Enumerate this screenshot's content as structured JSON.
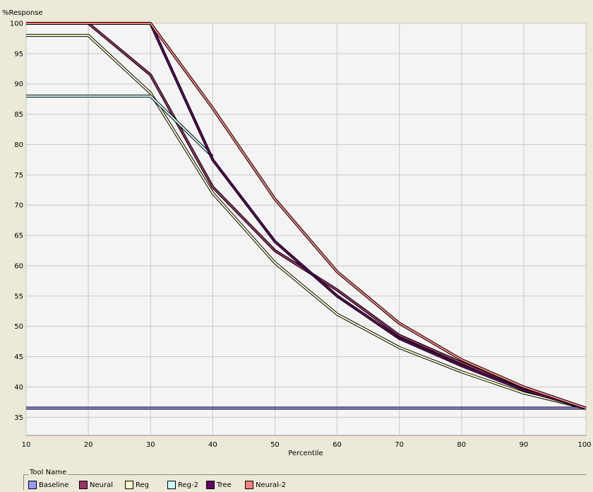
{
  "chart_data": {
    "type": "line",
    "ylabel": "%Response",
    "xlabel": "Percentile",
    "xlim": [
      10,
      100
    ],
    "ylim": [
      32,
      100
    ],
    "x_ticks": [
      10,
      20,
      30,
      40,
      50,
      60,
      70,
      80,
      90,
      100
    ],
    "y_ticks": [
      35,
      40,
      45,
      50,
      55,
      60,
      65,
      70,
      75,
      80,
      85,
      90,
      95,
      100
    ],
    "grid": true,
    "legend_title": "Tool Name",
    "legend_placement": "bottom",
    "series": [
      {
        "name": "Baseline",
        "color": "#9999ff",
        "points": [
          [
            10,
            36.5
          ],
          [
            100,
            36.5
          ]
        ]
      },
      {
        "name": "Neural",
        "color": "#993366",
        "points": [
          [
            10,
            100
          ],
          [
            20,
            100
          ],
          [
            30,
            91.5
          ],
          [
            40,
            73
          ],
          [
            50,
            62.5
          ],
          [
            60,
            56
          ],
          [
            70,
            48.5
          ],
          [
            80,
            44
          ],
          [
            90,
            39.5
          ],
          [
            100,
            36.5
          ]
        ]
      },
      {
        "name": "Reg",
        "color": "#ffffcc",
        "points": [
          [
            10,
            98
          ],
          [
            20,
            98
          ],
          [
            30,
            88.5
          ],
          [
            40,
            72
          ],
          [
            50,
            60.5
          ],
          [
            60,
            52
          ],
          [
            70,
            46.5
          ],
          [
            80,
            42.5
          ],
          [
            90,
            39
          ],
          [
            100,
            36.5
          ]
        ]
      },
      {
        "name": "Reg-2",
        "color": "#ccffff",
        "points": [
          [
            10,
            88
          ],
          [
            20,
            88
          ],
          [
            30,
            88
          ],
          [
            40,
            78
          ]
        ]
      },
      {
        "name": "Tree",
        "color": "#660066",
        "points": [
          [
            30,
            100
          ],
          [
            40,
            77.5
          ],
          [
            50,
            64
          ],
          [
            60,
            55
          ],
          [
            70,
            48
          ],
          [
            80,
            43.5
          ],
          [
            90,
            39.5
          ],
          [
            100,
            36.5
          ]
        ]
      },
      {
        "name": "Neural-2",
        "color": "#ff8080",
        "points": [
          [
            10,
            100
          ],
          [
            20,
            100
          ],
          [
            30,
            100
          ],
          [
            40,
            86
          ],
          [
            50,
            71
          ],
          [
            60,
            59
          ],
          [
            70,
            50.5
          ],
          [
            80,
            44.5
          ],
          [
            90,
            40
          ],
          [
            100,
            36.5
          ]
        ]
      }
    ]
  }
}
